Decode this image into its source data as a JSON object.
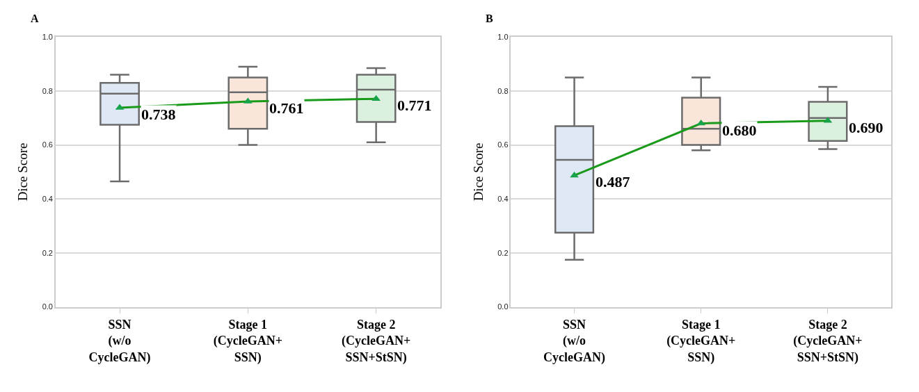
{
  "chart_data": [
    {
      "type": "box",
      "title": "A",
      "ylabel": "Dice Score",
      "categories": [
        "SSN\n(w/o\nCycleGAN)",
        "Stage 1\n(CycleGAN+\nSSN)",
        "Stage 2\n(CycleGAN+\nSSN+StSN)"
      ],
      "colors": [
        "#dfe8f5",
        "#f9e5da",
        "#dcf0e0"
      ],
      "boxes": [
        {
          "low": 0.465,
          "q1": 0.675,
          "median": 0.79,
          "q3": 0.83,
          "high": 0.86
        },
        {
          "low": 0.6,
          "q1": 0.66,
          "median": 0.795,
          "q3": 0.85,
          "high": 0.89
        },
        {
          "low": 0.61,
          "q1": 0.685,
          "median": 0.805,
          "q3": 0.86,
          "high": 0.885
        }
      ],
      "series": [
        {
          "type": "line",
          "color": "#1a9a1a",
          "values": [
            0.738,
            0.761,
            0.771
          ],
          "value_labels": [
            "0.738",
            "0.761",
            "0.771"
          ]
        }
      ],
      "marker": "triangle",
      "grid": "y",
      "ylim": [
        0,
        1
      ],
      "yticks": [
        {
          "value": 0,
          "label": "0.0"
        },
        {
          "value": 0.2,
          "label": "0.2"
        },
        {
          "value": 0.4,
          "label": "0.4"
        },
        {
          "value": 0.6,
          "label": "0.6"
        },
        {
          "value": 0.8,
          "label": "0.8"
        },
        {
          "value": 1,
          "label": "1.0"
        }
      ]
    },
    {
      "type": "box",
      "title": "B",
      "ylabel": "Dice Score",
      "categories": [
        "SSN\n(w/o\nCycleGAN)",
        "Stage 1\n(CycleGAN+\nSSN)",
        "Stage 2\n(CycleGAN+\nSSN+StSN)"
      ],
      "colors": [
        "#dfe8f5",
        "#f9e5da",
        "#dcf0e0"
      ],
      "boxes": [
        {
          "low": 0.175,
          "q1": 0.275,
          "median": 0.545,
          "q3": 0.67,
          "high": 0.85
        },
        {
          "low": 0.58,
          "q1": 0.6,
          "median": 0.66,
          "q3": 0.775,
          "high": 0.85
        },
        {
          "low": 0.585,
          "q1": 0.615,
          "median": 0.7,
          "q3": 0.76,
          "high": 0.815
        }
      ],
      "series": [
        {
          "type": "line",
          "color": "#1a9a1a",
          "values": [
            0.487,
            0.68,
            0.69
          ],
          "value_labels": [
            "0.487",
            "0.680",
            "0.690"
          ]
        }
      ],
      "marker": "triangle",
      "grid": "y",
      "ylim": [
        0,
        1
      ],
      "yticks": [
        {
          "value": 0,
          "label": "0.0"
        },
        {
          "value": 0.2,
          "label": "0.2"
        },
        {
          "value": 0.4,
          "label": "0.4"
        },
        {
          "value": 0.6,
          "label": "0.6"
        },
        {
          "value": 0.8,
          "label": "0.8"
        },
        {
          "value": 1,
          "label": "1.0"
        }
      ]
    }
  ]
}
